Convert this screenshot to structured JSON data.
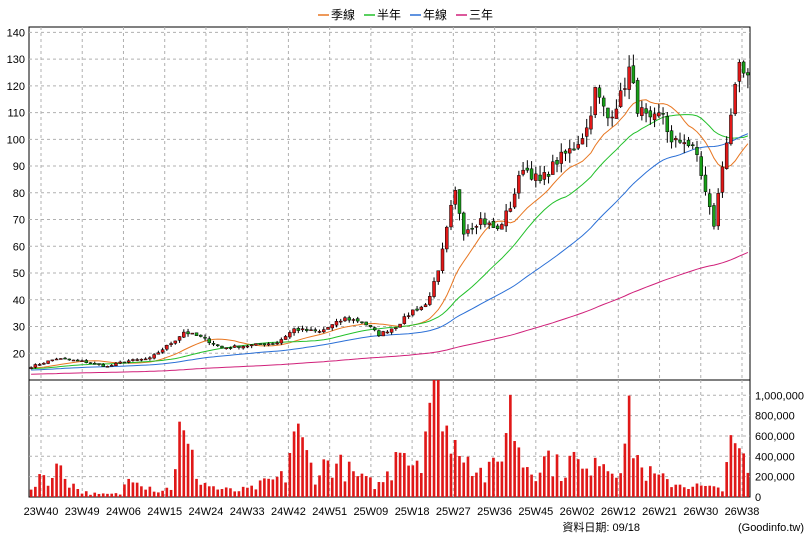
{
  "chart_data": {
    "type": "candlestick",
    "legend": {
      "placement": "top-center",
      "items": [
        {
          "name": "季線",
          "color": "#e87722"
        },
        {
          "name": "半年",
          "color": "#22c02a"
        },
        {
          "name": "年線",
          "color": "#2a6fd6"
        },
        {
          "name": "三年",
          "color": "#d0207a"
        }
      ]
    },
    "colors": {
      "up": "#e01818",
      "down": "#18a018",
      "volume": "#e01818"
    },
    "price_axis": {
      "min": 10,
      "max": 142,
      "ticks": [
        20,
        30,
        40,
        50,
        60,
        70,
        80,
        90,
        100,
        110,
        120,
        130,
        140
      ],
      "grid": true
    },
    "volume_axis": {
      "min": 0,
      "max": 1150000,
      "ticks": [
        0,
        200000,
        400000,
        600000,
        800000,
        1000000
      ],
      "tick_labels": [
        "0",
        "200,000",
        "400,000",
        "600,000",
        "800,000",
        "1,000,000"
      ]
    },
    "x_labels": [
      "23W40",
      "23W49",
      "24W06",
      "24W15",
      "24W24",
      "24W33",
      "24W42",
      "24W51",
      "25W09",
      "25W18",
      "25W27",
      "25W36",
      "25W45",
      "26W02",
      "26W12",
      "26W21",
      "26W30",
      "26W38"
    ],
    "close_anchors": [
      {
        "i": 0,
        "c": 15
      },
      {
        "i": 6,
        "c": 18
      },
      {
        "i": 12,
        "c": 17
      },
      {
        "i": 18,
        "c": 15
      },
      {
        "i": 22,
        "c": 17
      },
      {
        "i": 28,
        "c": 18
      },
      {
        "i": 34,
        "c": 25
      },
      {
        "i": 36,
        "c": 28
      },
      {
        "i": 40,
        "c": 26
      },
      {
        "i": 45,
        "c": 22
      },
      {
        "i": 52,
        "c": 23
      },
      {
        "i": 58,
        "c": 24
      },
      {
        "i": 62,
        "c": 29
      },
      {
        "i": 68,
        "c": 28
      },
      {
        "i": 74,
        "c": 33
      },
      {
        "i": 78,
        "c": 32
      },
      {
        "i": 82,
        "c": 27
      },
      {
        "i": 86,
        "c": 30
      },
      {
        "i": 90,
        "c": 36
      },
      {
        "i": 93,
        "c": 38
      },
      {
        "i": 96,
        "c": 50
      },
      {
        "i": 99,
        "c": 74
      },
      {
        "i": 100,
        "c": 80
      },
      {
        "i": 102,
        "c": 66
      },
      {
        "i": 106,
        "c": 70
      },
      {
        "i": 110,
        "c": 66
      },
      {
        "i": 113,
        "c": 75
      },
      {
        "i": 116,
        "c": 90
      },
      {
        "i": 120,
        "c": 84
      },
      {
        "i": 124,
        "c": 92
      },
      {
        "i": 128,
        "c": 97
      },
      {
        "i": 131,
        "c": 104
      },
      {
        "i": 133,
        "c": 118
      },
      {
        "i": 136,
        "c": 108
      },
      {
        "i": 139,
        "c": 116
      },
      {
        "i": 141,
        "c": 126
      },
      {
        "i": 143,
        "c": 112
      },
      {
        "i": 146,
        "c": 106
      },
      {
        "i": 149,
        "c": 110
      },
      {
        "i": 151,
        "c": 98
      },
      {
        "i": 154,
        "c": 100
      },
      {
        "i": 157,
        "c": 94
      },
      {
        "i": 159,
        "c": 80
      },
      {
        "i": 161,
        "c": 68
      },
      {
        "i": 163,
        "c": 90
      },
      {
        "i": 165,
        "c": 110
      },
      {
        "i": 167,
        "c": 126
      },
      {
        "i": 169,
        "c": 122
      }
    ],
    "volume_anchors": [
      {
        "i": 0,
        "v": 70000
      },
      {
        "i": 2,
        "v": 230000
      },
      {
        "i": 5,
        "v": 180000
      },
      {
        "i": 7,
        "v": 330000
      },
      {
        "i": 9,
        "v": 150000
      },
      {
        "i": 12,
        "v": 50000
      },
      {
        "i": 16,
        "v": 25000
      },
      {
        "i": 21,
        "v": 30000
      },
      {
        "i": 24,
        "v": 260000
      },
      {
        "i": 27,
        "v": 120000
      },
      {
        "i": 30,
        "v": 60000
      },
      {
        "i": 33,
        "v": 90000
      },
      {
        "i": 35,
        "v": 620000
      },
      {
        "i": 37,
        "v": 450000
      },
      {
        "i": 40,
        "v": 150000
      },
      {
        "i": 44,
        "v": 80000
      },
      {
        "i": 48,
        "v": 60000
      },
      {
        "i": 52,
        "v": 80000
      },
      {
        "i": 56,
        "v": 150000
      },
      {
        "i": 60,
        "v": 200000
      },
      {
        "i": 62,
        "v": 680000
      },
      {
        "i": 64,
        "v": 480000
      },
      {
        "i": 67,
        "v": 220000
      },
      {
        "i": 70,
        "v": 340000
      },
      {
        "i": 73,
        "v": 300000
      },
      {
        "i": 76,
        "v": 220000
      },
      {
        "i": 79,
        "v": 150000
      },
      {
        "i": 82,
        "v": 120000
      },
      {
        "i": 85,
        "v": 260000
      },
      {
        "i": 87,
        "v": 700000
      },
      {
        "i": 89,
        "v": 350000
      },
      {
        "i": 92,
        "v": 420000
      },
      {
        "i": 94,
        "v": 1000000
      },
      {
        "i": 96,
        "v": 900000
      },
      {
        "i": 97,
        "v": 1080000
      },
      {
        "i": 99,
        "v": 400000
      },
      {
        "i": 101,
        "v": 600000
      },
      {
        "i": 104,
        "v": 350000
      },
      {
        "i": 107,
        "v": 200000
      },
      {
        "i": 110,
        "v": 330000
      },
      {
        "i": 113,
        "v": 850000
      },
      {
        "i": 116,
        "v": 350000
      },
      {
        "i": 119,
        "v": 280000
      },
      {
        "i": 122,
        "v": 400000
      },
      {
        "i": 125,
        "v": 250000
      },
      {
        "i": 128,
        "v": 380000
      },
      {
        "i": 131,
        "v": 200000
      },
      {
        "i": 133,
        "v": 500000
      },
      {
        "i": 136,
        "v": 300000
      },
      {
        "i": 139,
        "v": 340000
      },
      {
        "i": 141,
        "v": 700000
      },
      {
        "i": 144,
        "v": 260000
      },
      {
        "i": 147,
        "v": 200000
      },
      {
        "i": 150,
        "v": 150000
      },
      {
        "i": 154,
        "v": 120000
      },
      {
        "i": 158,
        "v": 100000
      },
      {
        "i": 161,
        "v": 80000
      },
      {
        "i": 163,
        "v": 100000
      },
      {
        "i": 164,
        "v": 400000
      },
      {
        "i": 166,
        "v": 460000
      },
      {
        "i": 168,
        "v": 330000
      },
      {
        "i": 169,
        "v": 260000
      }
    ],
    "moving_averages": [
      {
        "name": "季線",
        "window": 13,
        "color": "#e87722"
      },
      {
        "name": "半年",
        "window": 26,
        "color": "#22c02a"
      },
      {
        "name": "年線",
        "window": 52,
        "color": "#2a6fd6"
      },
      {
        "name": "三年",
        "window": 156,
        "color": "#d0207a"
      }
    ]
  },
  "footer": {
    "date_label": "資料日期: 09/18",
    "source": "(Goodinfo.tw)"
  }
}
